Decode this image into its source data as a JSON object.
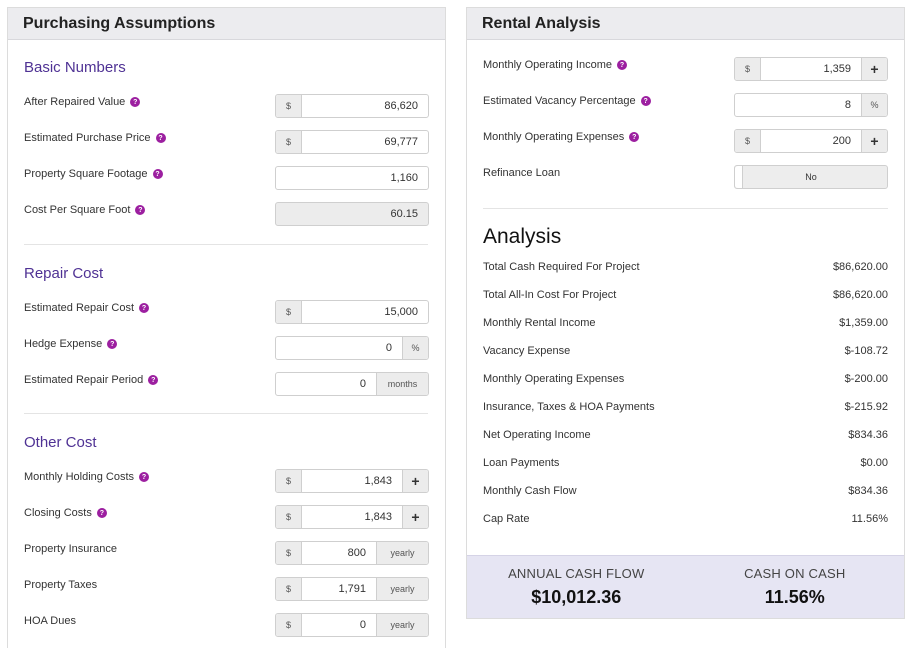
{
  "purchasing": {
    "title": "Purchasing Assumptions",
    "basic_title": "Basic Numbers",
    "after_repaired_value": {
      "label": "After Repaired Value",
      "prefix": "$",
      "value": "86,620"
    },
    "purchase_price": {
      "label": "Estimated Purchase Price",
      "prefix": "$",
      "value": "69,777"
    },
    "square_footage": {
      "label": "Property Square Footage",
      "value": "1,160"
    },
    "cost_per_sqft": {
      "label": "Cost Per Square Foot",
      "value": "60.15"
    },
    "repair_title": "Repair Cost",
    "repair_cost": {
      "label": "Estimated Repair Cost",
      "prefix": "$",
      "value": "15,000"
    },
    "hedge_expense": {
      "label": "Hedge Expense",
      "value": "0",
      "suffix": "%"
    },
    "repair_period": {
      "label": "Estimated Repair Period",
      "value": "0",
      "suffix": "months"
    },
    "other_title": "Other Cost",
    "holding_costs": {
      "label": "Monthly Holding Costs",
      "prefix": "$",
      "value": "1,843",
      "button": "+"
    },
    "closing_costs": {
      "label": "Closing Costs",
      "prefix": "$",
      "value": "1,843",
      "button": "+"
    },
    "insurance": {
      "label": "Property Insurance",
      "prefix": "$",
      "value": "800",
      "suffix": "yearly"
    },
    "taxes": {
      "label": "Property Taxes",
      "prefix": "$",
      "value": "1,791",
      "suffix": "yearly"
    },
    "hoa": {
      "label": "HOA Dues",
      "prefix": "$",
      "value": "0",
      "suffix": "yearly"
    }
  },
  "rental": {
    "title": "Rental Analysis",
    "operating_income": {
      "label": "Monthly Operating Income",
      "prefix": "$",
      "value": "1,359",
      "button": "+"
    },
    "vacancy_pct": {
      "label": "Estimated Vacancy Percentage",
      "value": "8",
      "suffix": "%"
    },
    "operating_expenses": {
      "label": "Monthly Operating Expenses",
      "prefix": "$",
      "value": "200",
      "button": "+"
    },
    "refinance": {
      "label": "Refinance Loan",
      "value": "No"
    },
    "analysis_title": "Analysis",
    "analysis_rows": [
      {
        "label": "Total Cash Required For Project",
        "value": "$86,620.00"
      },
      {
        "label": "Total All-In Cost For Project",
        "value": "$86,620.00"
      },
      {
        "label": "Monthly Rental Income",
        "value": "$1,359.00"
      },
      {
        "label": "Vacancy Expense",
        "value": "$-108.72"
      },
      {
        "label": "Monthly Operating Expenses",
        "value": "$-200.00"
      },
      {
        "label": "Insurance, Taxes & HOA Payments",
        "value": "$-215.92"
      },
      {
        "label": "Net Operating Income",
        "value": "$834.36"
      },
      {
        "label": "Loan Payments",
        "value": "$0.00"
      },
      {
        "label": "Monthly Cash Flow",
        "value": "$834.36"
      },
      {
        "label": "Cap Rate",
        "value": "11.56%"
      }
    ],
    "annual_cash_flow": {
      "label": "ANNUAL CASH FLOW",
      "value": "$10,012.36"
    },
    "cash_on_cash": {
      "label": "CASH ON CASH",
      "value": "11.56%"
    }
  },
  "colors": {
    "accent": "#4f3294",
    "help_icon": "#9c1fa0",
    "summary_bg": "#e6e5f3"
  },
  "icons": {
    "help": "question-mark-circle-icon",
    "add": "plus-icon"
  }
}
